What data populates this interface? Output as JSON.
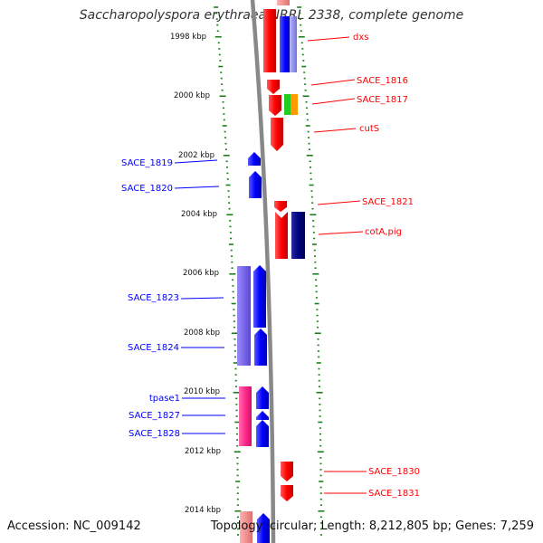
{
  "title": "Saccharopolyspora erythraea NRRL 2338, complete genome",
  "footer": {
    "accession": "Accession: NC_009142",
    "topology": "Topology: circular; Length: 8,212,805 bp; Genes: 7,259"
  },
  "axis": {
    "tick_labels": [
      "1998 kbp",
      "2000 kbp",
      "2002 kbp",
      "2004 kbp",
      "2006 kbp",
      "2008 kbp",
      "2010 kbp",
      "2012 kbp",
      "2014 kbp"
    ]
  },
  "genes_right": [
    {
      "label": "dxs",
      "color": "#ff0000"
    },
    {
      "label": "SACE_1816",
      "color": "#ff0000"
    },
    {
      "label": "SACE_1817",
      "color": "#ff0000"
    },
    {
      "label": "cutS",
      "color": "#ff0000"
    },
    {
      "label": "SACE_1821",
      "color": "#ff0000"
    },
    {
      "label": "cotA,pig",
      "color": "#ff0000"
    },
    {
      "label": "SACE_1830",
      "color": "#ff0000"
    },
    {
      "label": "SACE_1831",
      "color": "#ff0000"
    }
  ],
  "genes_left": [
    {
      "label": "SACE_1819",
      "color": "#0000ff"
    },
    {
      "label": "SACE_1820",
      "color": "#0000ff"
    },
    {
      "label": "SACE_1823",
      "color": "#0000ff"
    },
    {
      "label": "SACE_1824",
      "color": "#0000ff"
    },
    {
      "label": "tpase1",
      "color": "#0000ff"
    },
    {
      "label": "SACE_1827",
      "color": "#0000ff"
    },
    {
      "label": "SACE_1828",
      "color": "#0000ff"
    }
  ],
  "colors": {
    "forward_cds": "#ff0000",
    "reverse_cds": "#0000ff",
    "forward_rna": "#ff6fa0",
    "reverse_rna": "#7b68ee",
    "axis_ticks": "#1a7f1a",
    "backbone": "#888888"
  }
}
